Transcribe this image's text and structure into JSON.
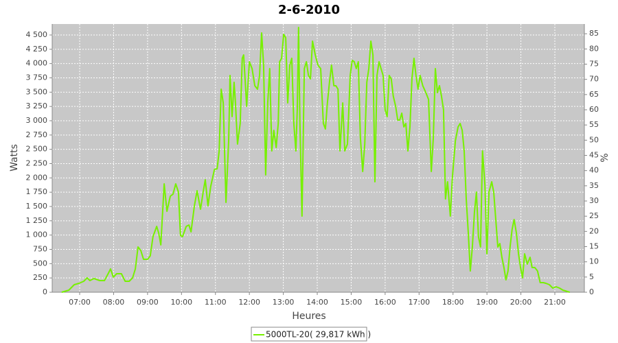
{
  "chart_data": {
    "type": "line",
    "title": "2-6-2010",
    "x_label": "Heures",
    "y_label": "Watts",
    "y2_label": "%",
    "xlim": [
      6.19,
      21.87
    ],
    "ylim": [
      0,
      4692
    ],
    "y2lim": [
      0,
      88.2
    ],
    "grid": true,
    "legend": "bottom",
    "xticks": [
      {
        "value": 7,
        "label": "07:00"
      },
      {
        "value": 8,
        "label": "08:00"
      },
      {
        "value": 9,
        "label": "09:00"
      },
      {
        "value": 10,
        "label": "10:00"
      },
      {
        "value": 11,
        "label": "11:00"
      },
      {
        "value": 12,
        "label": "12:00"
      },
      {
        "value": 13,
        "label": "13:00"
      },
      {
        "value": 14,
        "label": "14:00"
      },
      {
        "value": 15,
        "label": "15:00"
      },
      {
        "value": 16,
        "label": "16:00"
      },
      {
        "value": 17,
        "label": "17:00"
      },
      {
        "value": 18,
        "label": "18:00"
      },
      {
        "value": 19,
        "label": "19:00"
      },
      {
        "value": 20,
        "label": "20:00"
      },
      {
        "value": 21,
        "label": "21:00"
      }
    ],
    "yticks": [
      0,
      250,
      500,
      750,
      {
        "value": 1000,
        "label": "1 000"
      },
      {
        "value": 1250,
        "label": "1 250"
      },
      {
        "value": 1500,
        "label": "1 500"
      },
      {
        "value": 1750,
        "label": "1 750"
      },
      {
        "value": 2000,
        "label": "2 000"
      },
      {
        "value": 2250,
        "label": "2 250"
      },
      {
        "value": 2500,
        "label": "2 500"
      },
      {
        "value": 2750,
        "label": "2 750"
      },
      {
        "value": 3000,
        "label": "3 000"
      },
      {
        "value": 3250,
        "label": "3 250"
      },
      {
        "value": 3500,
        "label": "3 500"
      },
      {
        "value": 3750,
        "label": "3 750"
      },
      {
        "value": 4000,
        "label": "4 000"
      },
      {
        "value": 4250,
        "label": "4 250"
      },
      {
        "value": 4500,
        "label": "4 500"
      }
    ],
    "y2ticks": [
      0,
      5,
      10,
      15,
      20,
      25,
      30,
      35,
      40,
      45,
      50,
      55,
      60,
      65,
      70,
      75,
      80,
      85
    ],
    "x": [
      6.47,
      6.68,
      6.84,
      6.98,
      7.12,
      7.22,
      7.3,
      7.42,
      7.59,
      7.73,
      7.85,
      7.91,
      7.99,
      8.09,
      8.23,
      8.34,
      8.46,
      8.56,
      8.64,
      8.72,
      8.8,
      8.88,
      9.0,
      9.08,
      9.16,
      9.27,
      9.33,
      9.39,
      9.49,
      9.57,
      9.67,
      9.75,
      9.83,
      9.91,
      9.97,
      10.03,
      10.14,
      10.22,
      10.28,
      10.38,
      10.46,
      10.56,
      10.64,
      10.7,
      10.78,
      10.86,
      10.97,
      11.05,
      11.11,
      11.17,
      11.23,
      11.31,
      11.39,
      11.43,
      11.49,
      11.55,
      11.59,
      11.65,
      11.73,
      11.79,
      11.83,
      11.88,
      11.92,
      12.0,
      12.08,
      12.16,
      12.24,
      12.3,
      12.36,
      12.42,
      12.48,
      12.54,
      12.6,
      12.66,
      12.72,
      12.79,
      12.85,
      12.89,
      12.95,
      13.01,
      13.07,
      13.13,
      13.19,
      13.25,
      13.31,
      13.37,
      13.41,
      13.45,
      13.49,
      13.55,
      13.62,
      13.68,
      13.74,
      13.8,
      13.86,
      13.94,
      14.02,
      14.1,
      14.18,
      14.24,
      14.3,
      14.36,
      14.42,
      14.49,
      14.55,
      14.61,
      14.67,
      14.75,
      14.81,
      14.89,
      14.97,
      15.03,
      15.09,
      15.15,
      15.21,
      15.27,
      15.34,
      15.4,
      15.46,
      15.52,
      15.58,
      15.64,
      15.7,
      15.76,
      15.82,
      15.88,
      15.94,
      16.0,
      16.06,
      16.12,
      16.18,
      16.24,
      16.31,
      16.37,
      16.43,
      16.49,
      16.55,
      16.61,
      16.67,
      16.73,
      16.79,
      16.85,
      16.91,
      16.97,
      17.03,
      17.11,
      17.2,
      17.28,
      17.36,
      17.42,
      17.48,
      17.54,
      17.6,
      17.66,
      17.72,
      17.78,
      17.84,
      17.92,
      17.98,
      18.07,
      18.15,
      18.21,
      18.27,
      18.33,
      18.39,
      18.45,
      18.51,
      18.57,
      18.63,
      18.69,
      18.75,
      18.81,
      18.87,
      18.94,
      19.0,
      19.06,
      19.14,
      19.2,
      19.26,
      19.32,
      19.38,
      19.44,
      19.5,
      19.56,
      19.62,
      19.68,
      19.74,
      19.8,
      19.87,
      19.93,
      19.99,
      20.05,
      20.11,
      20.19,
      20.27,
      20.33,
      20.41,
      20.49,
      20.57,
      20.66,
      20.74,
      20.84,
      20.94,
      21.04,
      21.14,
      21.24,
      21.44
    ],
    "series": [
      {
        "name": "5000TL-20( 29,817 kWh )",
        "color": "#77f000",
        "values": [
          0,
          36,
          132,
          156,
          192,
          252,
          204,
          240,
          204,
          204,
          336,
          408,
          264,
          324,
          324,
          192,
          192,
          252,
          408,
          792,
          732,
          576,
          576,
          636,
          972,
          1152,
          1032,
          828,
          1896,
          1416,
          1680,
          1716,
          1896,
          1752,
          996,
          972,
          1152,
          1176,
          1056,
          1512,
          1776,
          1452,
          1752,
          1968,
          1512,
          1848,
          2148,
          2160,
          2472,
          3552,
          3312,
          1572,
          2652,
          3792,
          3072,
          3672,
          3312,
          2592,
          2952,
          4092,
          4152,
          3672,
          3252,
          4032,
          3912,
          3612,
          3552,
          3792,
          4536,
          3972,
          2052,
          3312,
          3912,
          2472,
          2832,
          2532,
          2952,
          4032,
          4092,
          4512,
          4452,
          3312,
          3972,
          4092,
          2952,
          2472,
          3192,
          4632,
          2952,
          1332,
          3912,
          4032,
          3792,
          3732,
          4392,
          4152,
          3972,
          3912,
          2952,
          2856,
          3312,
          3672,
          3972,
          3612,
          3612,
          3552,
          2472,
          3312,
          2472,
          2592,
          3792,
          4056,
          4032,
          3912,
          4032,
          2712,
          2112,
          2592,
          3672,
          3912,
          4392,
          4152,
          1932,
          3792,
          4032,
          3912,
          3792,
          3192,
          3072,
          3792,
          3732,
          3432,
          3252,
          3012,
          3012,
          3132,
          2892,
          2952,
          2472,
          2892,
          3732,
          4092,
          3792,
          3552,
          3792,
          3612,
          3492,
          3372,
          2112,
          2712,
          3912,
          3492,
          3612,
          3432,
          3192,
          1632,
          1932,
          1332,
          1992,
          2652,
          2892,
          2952,
          2832,
          2472,
          1632,
          1032,
          372,
          792,
          1392,
          1752,
          972,
          792,
          2472,
          1872,
          672,
          1752,
          1932,
          1752,
          1272,
          792,
          852,
          612,
          432,
          216,
          372,
          792,
          1092,
          1272,
          1032,
          672,
          432,
          252,
          672,
          492,
          612,
          432,
          432,
          372,
          168,
          168,
          156,
          132,
          72,
          96,
          72,
          36,
          0
        ]
      }
    ]
  }
}
